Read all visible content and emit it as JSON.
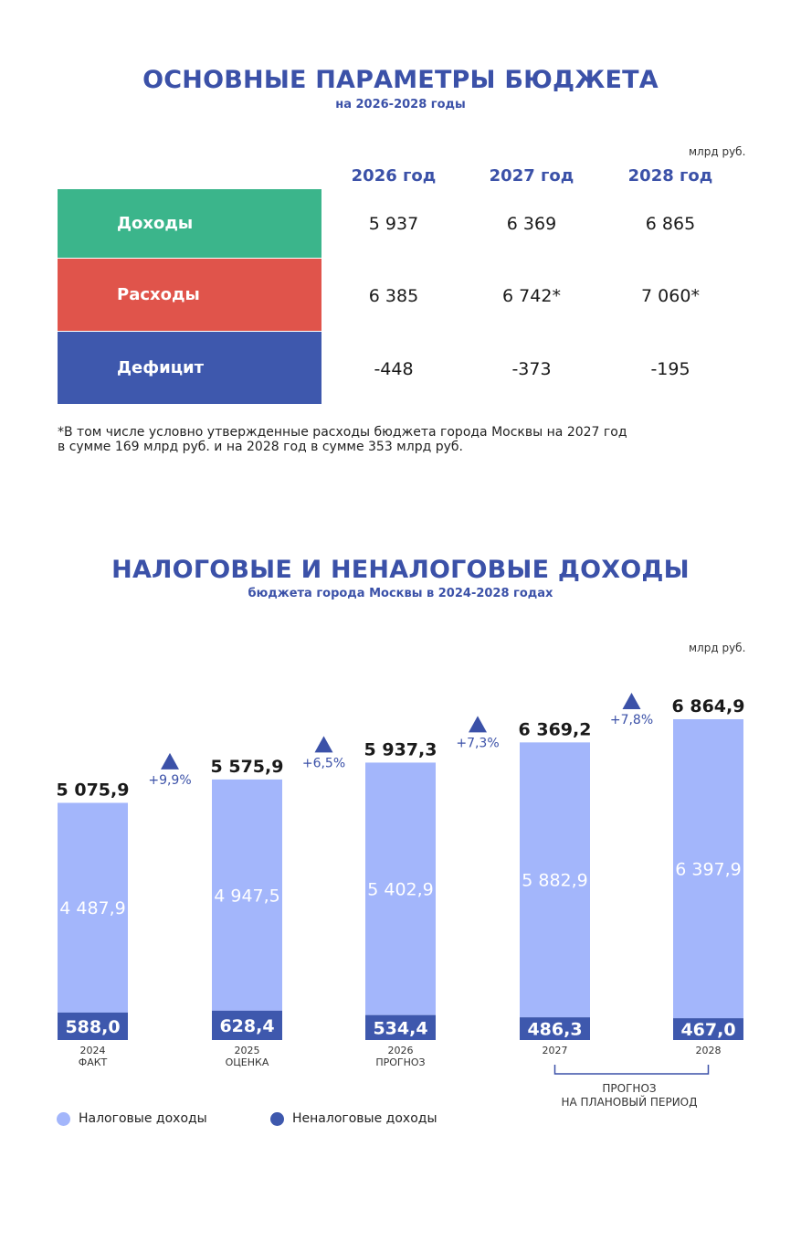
{
  "budget": {
    "title": "ОСНОВНЫЕ ПАРАМЕТРЫ БЮДЖЕТА",
    "subtitle": "на 2026-2028 годы",
    "unit": "млрд руб.",
    "years": [
      "2026 год",
      "2027 год",
      "2028 год"
    ],
    "rows": [
      {
        "label": "Доходы",
        "color": "#3bb58b",
        "values": [
          "5 937",
          "6 369",
          "6 865"
        ]
      },
      {
        "label": "Расходы",
        "color": "#e0544b",
        "values": [
          "6 385",
          "6 742*",
          "7 060*"
        ]
      },
      {
        "label": "Дефицит",
        "color": "#3e58ad",
        "values": [
          "-448",
          "-373",
          "-195"
        ]
      }
    ],
    "footnote_line1": "*В том числе условно утвержденные расходы бюджета города Москвы на 2027 год",
    "footnote_line2": "в сумме 169 млрд руб. и на 2028 год в сумме 353 млрд руб."
  },
  "revenue": {
    "title": "НАЛОГОВЫЕ И НЕНАЛОГОВЫЕ ДОХОДЫ",
    "subtitle": "бюджета города Москвы в 2024-2028 годах",
    "unit": "млрд руб.",
    "bracket_label_line1": "ПРОГНОЗ",
    "bracket_label_line2": "НА ПЛАНОВЫЙ ПЕРИОД",
    "legend": {
      "tax": "Налоговые доходы",
      "nontax": "Неналоговые доходы"
    },
    "colors": {
      "tax": "#a3b6fb",
      "nontax": "#3e58ad",
      "accent": "#3b51a8"
    }
  },
  "chart_data": {
    "type": "bar",
    "stacked": true,
    "title": "НАЛОГОВЫЕ И НЕНАЛОГОВЫЕ ДОХОДЫ",
    "ylabel": "млрд руб.",
    "categories": [
      "2024",
      "2025",
      "2026",
      "2027",
      "2028"
    ],
    "category_notes": [
      "ФАКТ",
      "ОЦЕНКА",
      "ПРОГНОЗ",
      "",
      ""
    ],
    "series": [
      {
        "name": "Неналоговые доходы",
        "values": [
          588.0,
          628.4,
          534.4,
          486.3,
          467.0
        ],
        "labels": [
          "588,0",
          "628,4",
          "534,4",
          "486,3",
          "467,0"
        ]
      },
      {
        "name": "Налоговые доходы",
        "values": [
          4487.9,
          4947.5,
          5402.9,
          5882.9,
          6397.9
        ],
        "labels": [
          "4 487,9",
          "4 947,5",
          "5 402,9",
          "5 882,9",
          "6 397,9"
        ]
      }
    ],
    "totals": [
      5075.9,
      5575.9,
      5937.3,
      6369.2,
      6864.9
    ],
    "total_labels": [
      "5 075,9",
      "5 575,9",
      "5 937,3",
      "6 369,2",
      "6 864,9"
    ],
    "growth_labels": [
      "+9,9%",
      "+6,5%",
      "+7,3%",
      "+7,8%"
    ],
    "ylim": [
      0,
      6864.9
    ]
  }
}
